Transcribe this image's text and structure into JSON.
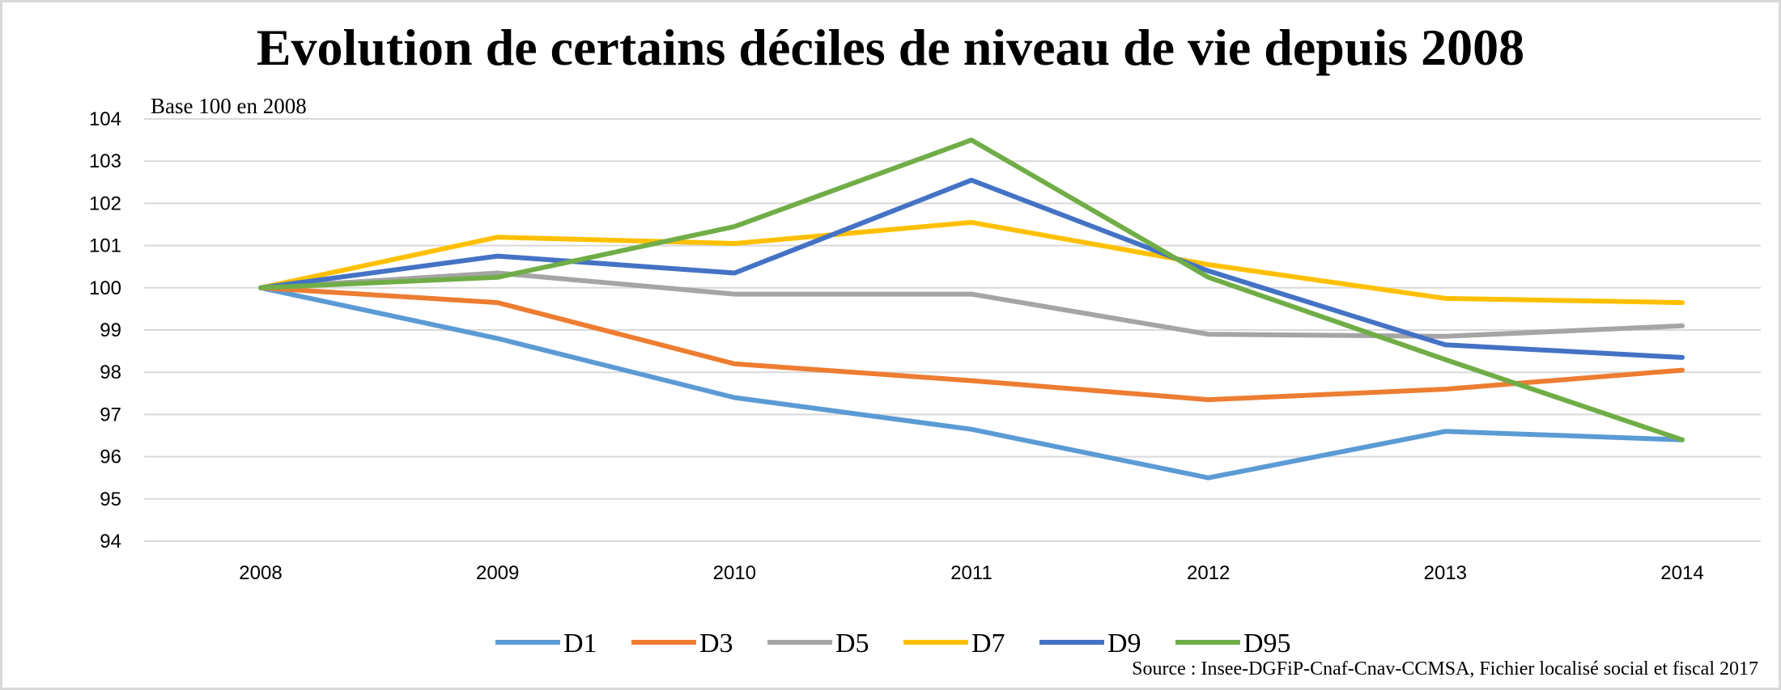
{
  "chart_data": {
    "type": "line",
    "title": "Evolution de certains déciles de niveau de vie depuis 2008",
    "subtitle": "Base 100 en 2008",
    "source": "Source :  Insee-DGFiP-Cnaf-Cnav-CCMSA, Fichier localisé social et fiscal 2017",
    "categories": [
      "2008",
      "2009",
      "2010",
      "2011",
      "2012",
      "2013",
      "2014"
    ],
    "ylim": [
      94,
      104
    ],
    "yticks": [
      94,
      95,
      96,
      97,
      98,
      99,
      100,
      101,
      102,
      103,
      104
    ],
    "grid": true,
    "legend_position": "bottom",
    "series": [
      {
        "name": "D1",
        "color": "#5b9bd5",
        "values": [
          100,
          98.8,
          97.4,
          96.65,
          95.5,
          96.6,
          96.4
        ]
      },
      {
        "name": "D3",
        "color": "#ed7d31",
        "values": [
          100,
          99.65,
          98.2,
          97.8,
          97.35,
          97.6,
          98.05
        ]
      },
      {
        "name": "D5",
        "color": "#a5a5a5",
        "values": [
          100,
          100.35,
          99.85,
          99.85,
          98.9,
          98.85,
          99.1
        ]
      },
      {
        "name": "D7",
        "color": "#ffc000",
        "values": [
          100,
          101.2,
          101.05,
          101.55,
          100.55,
          99.75,
          99.65
        ]
      },
      {
        "name": "D9",
        "color": "#4472c4",
        "values": [
          100,
          100.75,
          100.35,
          102.55,
          100.4,
          98.65,
          98.35
        ]
      },
      {
        "name": "D95",
        "color": "#70ad47",
        "values": [
          100,
          100.25,
          101.45,
          103.5,
          100.25,
          98.3,
          96.4
        ]
      }
    ]
  }
}
